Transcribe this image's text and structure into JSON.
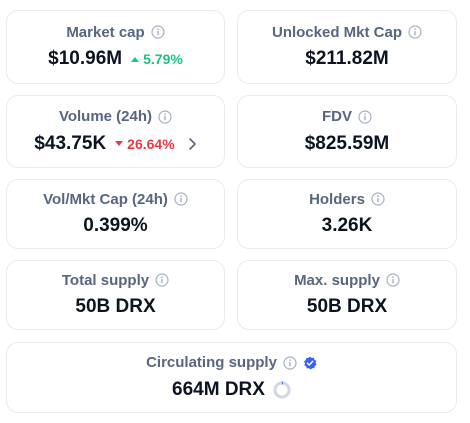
{
  "colors": {
    "border": "#e7ebf0",
    "label": "#58667e",
    "value": "#0d1421",
    "up": "#16c784",
    "down": "#ea3943",
    "verified": "#3861fb",
    "spinner": "#cfd6e4"
  },
  "stats": {
    "market_cap": {
      "label": "Market cap",
      "value": "$10.96M",
      "change": "5.79%",
      "direction": "up"
    },
    "unlocked_mkt_cap": {
      "label": "Unlocked Mkt Cap",
      "value": "$211.82M"
    },
    "volume_24h": {
      "label": "Volume (24h)",
      "value": "$43.75K",
      "change": "26.64%",
      "direction": "down"
    },
    "fdv": {
      "label": "FDV",
      "value": "$825.59M"
    },
    "vol_mkt_cap": {
      "label": "Vol/Mkt Cap (24h)",
      "value": "0.399%"
    },
    "holders": {
      "label": "Holders",
      "value": "3.26K"
    },
    "total_supply": {
      "label": "Total supply",
      "value": "50B DRX"
    },
    "max_supply": {
      "label": "Max. supply",
      "value": "50B DRX"
    },
    "circulating_supply": {
      "label": "Circulating supply",
      "value": "664M DRX"
    }
  },
  "icons": {
    "info": "info-circle-icon",
    "verified": "verified-check-icon",
    "up": "caret-up-icon",
    "down": "caret-down-icon",
    "chevron": "chevron-right-icon",
    "progress": "progress-ring-icon"
  }
}
